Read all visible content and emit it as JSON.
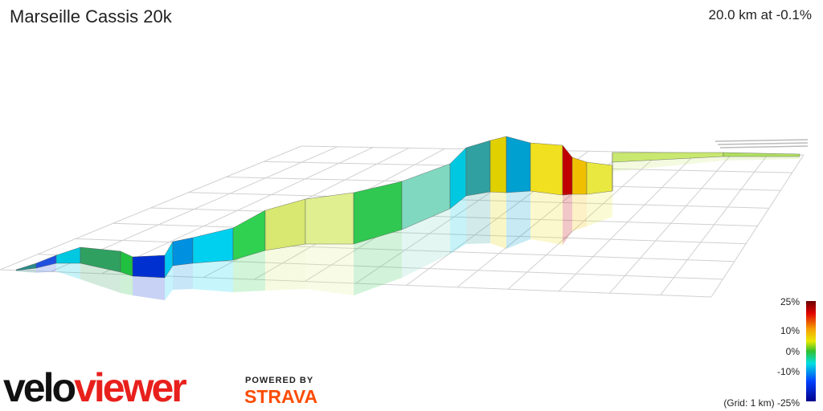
{
  "header": {
    "title": "Marseille Cassis 20k",
    "stat": "20.0 km at -0.1%"
  },
  "legend": {
    "labels": [
      "25%",
      "10%",
      "0%",
      "-10%"
    ],
    "grid_note": "(Grid: 1 km) -25%"
  },
  "brand": {
    "velo": "velo",
    "viewer": "viewer",
    "powered_by": "POWERED BY",
    "strava": "STRAVA"
  }
}
